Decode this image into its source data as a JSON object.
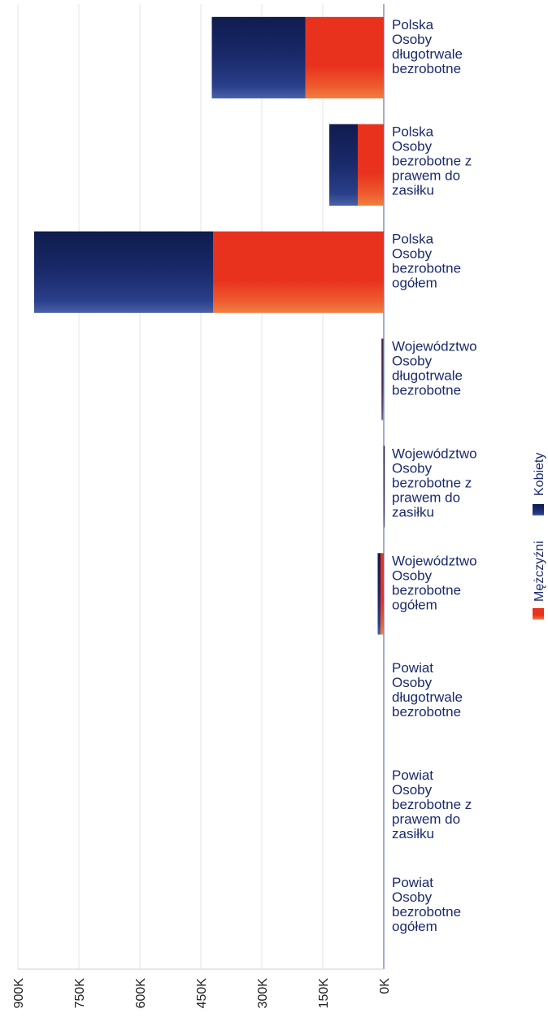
{
  "chart_data": {
    "type": "bar",
    "orientation": "horizontal-stacked",
    "rotated": true,
    "categories": [
      [
        "Polska",
        "Osoby",
        "długotrwale",
        "bezrobotne"
      ],
      [
        "Polska",
        "Osoby",
        "bezrobotne z",
        "prawem do",
        "zasiłku"
      ],
      [
        "Polska",
        "Osoby",
        "bezrobotne",
        "ogółem"
      ],
      [
        "Województwo",
        "Osoby",
        "długotrwale",
        "bezrobotne"
      ],
      [
        "Województwo",
        "Osoby",
        "bezrobotne z",
        "prawem do",
        "zasiłku"
      ],
      [
        "Województwo",
        "Osoby",
        "bezrobotne",
        "ogółem"
      ],
      [
        "Powiat",
        "Osoby",
        "długotrwale",
        "bezrobotne"
      ],
      [
        "Powiat",
        "Osoby",
        "bezrobotne z",
        "prawem do",
        "zasiłku"
      ],
      [
        "Powiat",
        "Osoby",
        "bezrobotne",
        "ogółem"
      ]
    ],
    "series": [
      {
        "name": "Mężczyźni",
        "color": "#e8321e",
        "values": [
          193000,
          64000,
          420000,
          3000,
          500,
          8000,
          0,
          0,
          0
        ]
      },
      {
        "name": "Kobiety",
        "color": "#1b2a6b",
        "values": [
          230000,
          70000,
          440000,
          2500,
          500,
          7000,
          0,
          0,
          0
        ]
      }
    ],
    "ticks": [
      "900K",
      "750K",
      "600K",
      "450K",
      "300K",
      "150K",
      "0K"
    ],
    "tick_values": [
      900000,
      750000,
      600000,
      450000,
      300000,
      150000,
      0
    ],
    "xlim": [
      0,
      900000
    ],
    "grid": true,
    "legend_placement": "right",
    "legend": [
      "Mężczyźni",
      "Kobiety"
    ]
  }
}
